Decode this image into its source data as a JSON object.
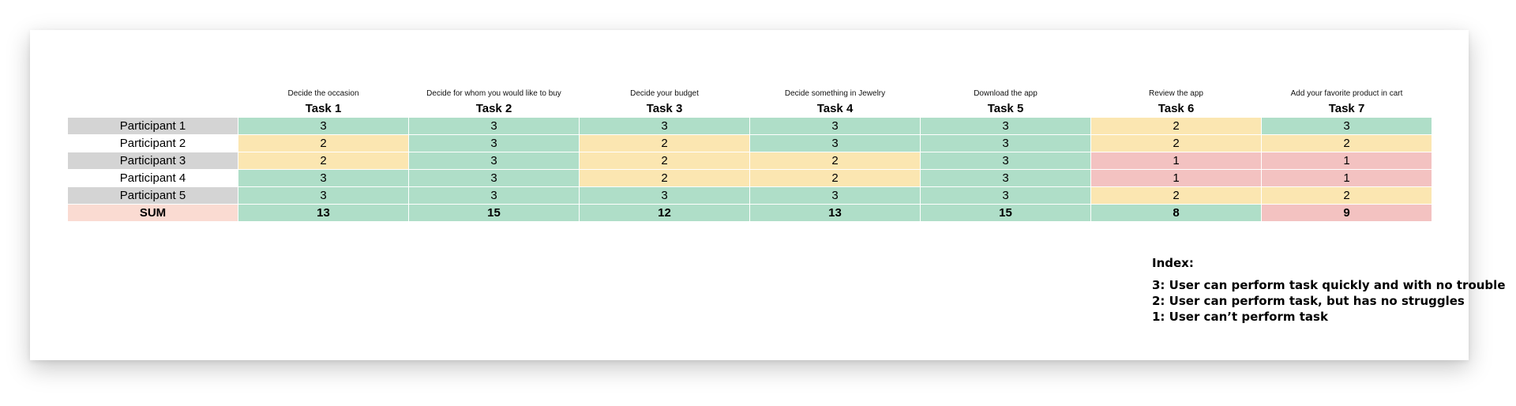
{
  "table": {
    "descriptions": [
      "Decide the occasion",
      "Decide for whom you would like to buy",
      "Decide your budget",
      "Decide something in Jewelry",
      "Download the app",
      "Review the app",
      "Add your favorite product in cart"
    ],
    "tasks": [
      "Task 1",
      "Task 2",
      "Task 3",
      "Task 4",
      "Task 5",
      "Task 6",
      "Task 7"
    ],
    "rows": [
      {
        "label": "Participant 1",
        "values": [
          "3",
          "3",
          "3",
          "3",
          "3",
          "2",
          "3"
        ]
      },
      {
        "label": "Participant 2",
        "values": [
          "2",
          "3",
          "2",
          "3",
          "3",
          "2",
          "2"
        ]
      },
      {
        "label": "Participant 3",
        "values": [
          "2",
          "3",
          "2",
          "2",
          "3",
          "1",
          "1"
        ]
      },
      {
        "label": "Participant 4",
        "values": [
          "3",
          "3",
          "2",
          "2",
          "3",
          "1",
          "1"
        ]
      },
      {
        "label": "Participant 5",
        "values": [
          "3",
          "3",
          "3",
          "3",
          "3",
          "2",
          "2"
        ]
      }
    ],
    "sum": {
      "label": "SUM",
      "values": [
        "13",
        "15",
        "12",
        "13",
        "15",
        "8",
        "9"
      ]
    },
    "colors": {
      "score_3": "#afdec8",
      "score_2": "#fbe6b1",
      "score_1": "#f3c2c1",
      "participant_shade": "#d4d4d4",
      "sum_label": "#fadbd2"
    }
  },
  "legend": {
    "title": "Index:",
    "lines": [
      "3: User can perform task quickly and with no trouble",
      "2: User can perform task, but has no struggles",
      "1: User can’t perform task"
    ]
  }
}
